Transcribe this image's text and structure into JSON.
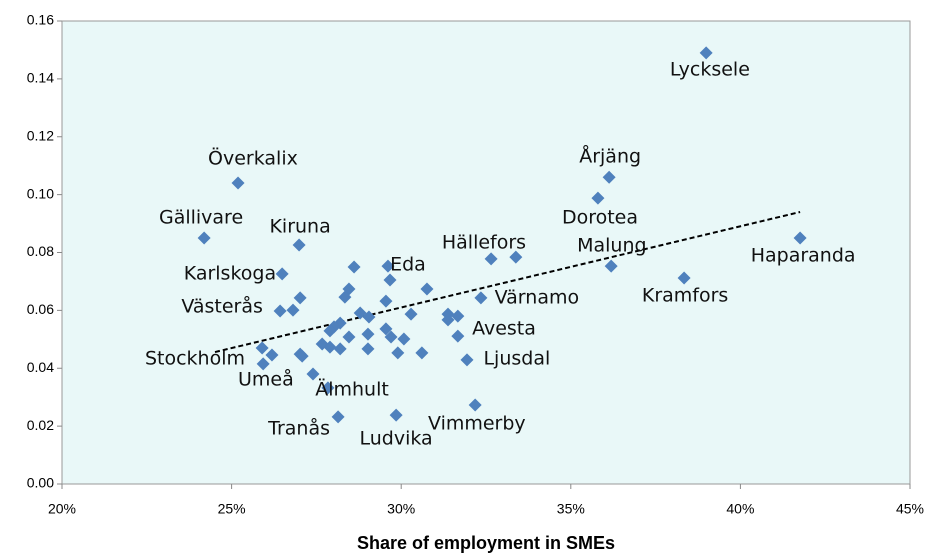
{
  "chart_data": {
    "type": "scatter",
    "x_label": "Share of employment in SMEs",
    "color": "#4f81bd",
    "background": "#e9f8f8",
    "x": [
      38.99,
      36.13,
      35.8,
      25.19,
      24.19,
      26.99,
      41.76,
      36.19,
      38.34,
      32.65,
      33.38,
      26.49,
      29.61,
      29.67,
      28.61,
      30.76,
      28.46,
      28.34,
      29.55,
      27.02,
      32.35,
      26.43,
      26.81,
      28.79,
      30.29,
      31.38,
      31.67,
      31.38,
      29.05,
      28.2,
      28.02,
      27.9,
      29.02,
      29.55,
      29.7,
      30.08,
      28.46,
      31.67,
      27.67,
      27.9,
      28.2,
      29.02,
      29.9,
      30.61,
      31.94,
      25.9,
      26.19,
      27.02,
      27.08,
      25.93,
      27.4,
      27.84,
      28.14,
      29.85,
      32.18
    ],
    "values": [
      0.149,
      0.106,
      0.0988,
      0.104,
      0.085,
      0.0826,
      0.085,
      0.0753,
      0.0712,
      0.0778,
      0.0784,
      0.0726,
      0.0753,
      0.0705,
      0.075,
      0.0674,
      0.0674,
      0.0646,
      0.0632,
      0.0643,
      0.0643,
      0.0598,
      0.0601,
      0.0591,
      0.0587,
      0.0587,
      0.058,
      0.0567,
      0.0577,
      0.0556,
      0.0543,
      0.0529,
      0.0518,
      0.0536,
      0.0508,
      0.0501,
      0.0508,
      0.0511,
      0.0484,
      0.0473,
      0.0467,
      0.0467,
      0.0453,
      0.0453,
      0.0429,
      0.047,
      0.0446,
      0.0449,
      0.0442,
      0.0415,
      0.038,
      0.0332,
      0.0232,
      0.0238,
      0.0273
    ],
    "annotations": [
      {
        "text": "Lycksele",
        "x": 39.1,
        "y": 0.143
      },
      {
        "text": "Årjäng",
        "x": 36.16,
        "y": 0.113
      },
      {
        "text": "Överkalix",
        "x": 25.63,
        "y": 0.1123
      },
      {
        "text": "Dorotea",
        "x": 35.86,
        "y": 0.0919
      },
      {
        "text": "Gällivare",
        "x": 24.1,
        "y": 0.0919
      },
      {
        "text": "Kiruna",
        "x": 27.02,
        "y": 0.0888
      },
      {
        "text": "Hällefors",
        "x": 32.44,
        "y": 0.0833
      },
      {
        "text": "Malung",
        "x": 36.21,
        "y": 0.0822
      },
      {
        "text": "Haparanda",
        "x": 41.85,
        "y": 0.0788
      },
      {
        "text": "Eda",
        "x": 30.2,
        "y": 0.0757
      },
      {
        "text": "Karlskoga",
        "x": 24.95,
        "y": 0.0726
      },
      {
        "text": "Kramfors",
        "x": 38.37,
        "y": 0.065
      },
      {
        "text": "Värnamo",
        "x": 34.0,
        "y": 0.0643
      },
      {
        "text": "Västerås",
        "x": 24.72,
        "y": 0.0612
      },
      {
        "text": "Avesta",
        "x": 33.03,
        "y": 0.0536
      },
      {
        "text": "Stockholm",
        "x": 23.92,
        "y": 0.0432
      },
      {
        "text": "Ljusdal",
        "x": 33.41,
        "y": 0.0432
      },
      {
        "text": "Umeå",
        "x": 26.01,
        "y": 0.0359
      },
      {
        "text": "Älmhult",
        "x": 28.55,
        "y": 0.0325
      },
      {
        "text": "Vimmerby",
        "x": 32.23,
        "y": 0.0207
      },
      {
        "text": "Tranås",
        "x": 26.99,
        "y": 0.019
      },
      {
        "text": "Ludvika",
        "x": 29.85,
        "y": 0.0156
      }
    ],
    "trendline": {
      "x": [
        24.51,
        41.76
      ],
      "y": [
        0.0456,
        0.094
      ]
    },
    "xlim": [
      20,
      45
    ],
    "xticks": [
      {
        "value": 20,
        "label": "20%"
      },
      {
        "value": 25,
        "label": "25%"
      },
      {
        "value": 30,
        "label": "30%"
      },
      {
        "value": 35,
        "label": "35%"
      },
      {
        "value": 40,
        "label": "40%"
      },
      {
        "value": 45,
        "label": "45%"
      }
    ],
    "ylim": [
      0,
      0.16
    ],
    "yticks": [
      {
        "value": 0,
        "label": "0.00"
      },
      {
        "value": 0.02,
        "label": "0.02"
      },
      {
        "value": 0.04,
        "label": "0.04"
      },
      {
        "value": 0.06,
        "label": "0.06"
      },
      {
        "value": 0.08,
        "label": "0.08"
      },
      {
        "value": 0.1,
        "label": "0.10"
      },
      {
        "value": 0.12,
        "label": "0.12"
      },
      {
        "value": 0.14,
        "label": "0.14"
      },
      {
        "value": 0.16,
        "label": "0.16"
      }
    ]
  }
}
